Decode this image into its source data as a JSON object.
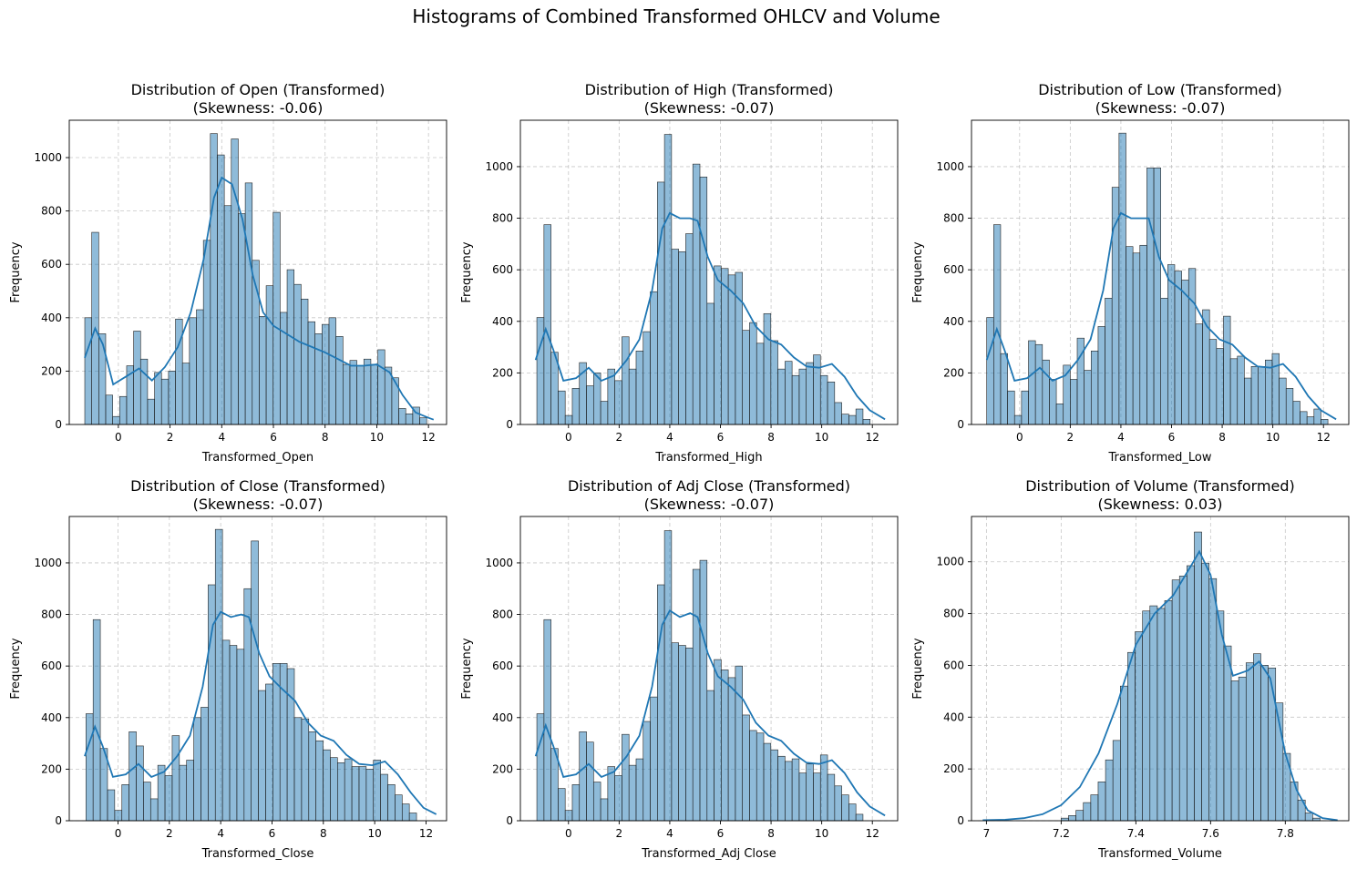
{
  "figure": {
    "suptitle": "Histograms of Combined Transformed OHLCV and Volume"
  },
  "colors": {
    "bar": "#1f77b4",
    "kde": "#1f77b4",
    "edge": "#222222",
    "grid": "#b0b0b0"
  },
  "chart_data": [
    {
      "type": "bar",
      "title_line1": "Distribution of Open (Transformed)",
      "title_line2": "(Skewness: -0.06)",
      "xlabel": "Transformed_Open",
      "ylabel": "Frequency",
      "bin_start": -1.3,
      "bin_width": 0.27,
      "values": [
        400,
        720,
        340,
        110,
        30,
        105,
        220,
        350,
        245,
        95,
        195,
        170,
        200,
        395,
        230,
        400,
        430,
        690,
        1090,
        1010,
        820,
        1070,
        790,
        905,
        615,
        405,
        520,
        795,
        420,
        580,
        525,
        470,
        385,
        340,
        375,
        400,
        330,
        225,
        240,
        220,
        245,
        225,
        280,
        215,
        175,
        60,
        40,
        65,
        25
      ],
      "kde_x": [
        -1.3,
        -0.9,
        -0.6,
        -0.2,
        0.3,
        0.8,
        1.3,
        1.8,
        2.3,
        2.8,
        3.3,
        3.7,
        4.0,
        4.4,
        4.8,
        5.2,
        5.6,
        6.0,
        6.5,
        7.0,
        7.5,
        8.0,
        8.5,
        9.0,
        9.5,
        10.0,
        10.5,
        11.0,
        11.5,
        12.0,
        12.2
      ],
      "kde_y": [
        250,
        360,
        300,
        150,
        180,
        210,
        165,
        215,
        290,
        420,
        620,
        850,
        925,
        900,
        770,
        560,
        420,
        370,
        340,
        310,
        290,
        270,
        245,
        220,
        220,
        225,
        195,
        110,
        45,
        25,
        18
      ],
      "xlim": [
        -1.9,
        12.7
      ],
      "ylim": [
        0,
        1140
      ],
      "xticks": [
        0,
        2,
        4,
        6,
        8,
        10,
        12
      ],
      "yticks": [
        0,
        200,
        400,
        600,
        800,
        1000
      ],
      "grid": true
    },
    {
      "type": "bar",
      "title_line1": "Distribution of High (Transformed)",
      "title_line2": "(Skewness: -0.07)",
      "xlabel": "Transformed_High",
      "ylabel": "Frequency",
      "bin_start": -1.25,
      "bin_width": 0.28,
      "values": [
        415,
        775,
        280,
        130,
        35,
        140,
        240,
        150,
        200,
        90,
        215,
        170,
        340,
        215,
        285,
        360,
        515,
        940,
        1125,
        680,
        670,
        740,
        1010,
        960,
        470,
        615,
        605,
        580,
        590,
        365,
        395,
        315,
        430,
        325,
        215,
        245,
        190,
        215,
        240,
        270,
        190,
        165,
        85,
        40,
        35,
        60,
        20
      ],
      "kde_x": [
        -1.3,
        -0.9,
        -0.6,
        -0.2,
        0.3,
        0.8,
        1.3,
        1.8,
        2.3,
        2.8,
        3.3,
        3.7,
        4.0,
        4.4,
        4.8,
        5.1,
        5.5,
        5.9,
        6.4,
        6.9,
        7.4,
        7.9,
        8.4,
        8.9,
        9.4,
        9.9,
        10.4,
        10.9,
        11.4,
        11.9,
        12.5
      ],
      "kde_y": [
        250,
        370,
        290,
        170,
        180,
        220,
        170,
        190,
        250,
        330,
        520,
        760,
        820,
        800,
        800,
        790,
        650,
        560,
        520,
        470,
        380,
        330,
        310,
        260,
        225,
        220,
        235,
        185,
        110,
        55,
        20
      ],
      "xlim": [
        -1.9,
        13.0
      ],
      "ylim": [
        0,
        1180
      ],
      "xticks": [
        0,
        2,
        4,
        6,
        8,
        10,
        12
      ],
      "yticks": [
        0,
        200,
        400,
        600,
        800,
        1000
      ],
      "grid": true
    },
    {
      "type": "bar",
      "title_line1": "Distribution of Low (Transformed)",
      "title_line2": "(Skewness: -0.07)",
      "xlabel": "Transformed_Low",
      "ylabel": "Frequency",
      "bin_start": -1.3,
      "bin_width": 0.275,
      "values": [
        415,
        775,
        275,
        130,
        35,
        130,
        325,
        310,
        250,
        175,
        80,
        230,
        175,
        335,
        210,
        285,
        380,
        490,
        920,
        1130,
        690,
        665,
        695,
        995,
        995,
        490,
        620,
        595,
        560,
        605,
        390,
        445,
        330,
        295,
        420,
        255,
        265,
        180,
        225,
        225,
        250,
        275,
        180,
        140,
        90,
        50,
        30,
        60,
        20
      ],
      "kde_x": [
        -1.3,
        -0.9,
        -0.6,
        -0.2,
        0.3,
        0.8,
        1.3,
        1.8,
        2.3,
        2.8,
        3.3,
        3.7,
        4.0,
        4.4,
        4.8,
        5.1,
        5.5,
        5.9,
        6.4,
        6.9,
        7.4,
        7.9,
        8.4,
        8.9,
        9.4,
        9.9,
        10.4,
        10.9,
        11.4,
        11.9,
        12.5
      ],
      "kde_y": [
        250,
        370,
        290,
        170,
        180,
        220,
        170,
        190,
        250,
        330,
        520,
        760,
        820,
        800,
        800,
        800,
        650,
        560,
        520,
        470,
        380,
        330,
        310,
        260,
        225,
        220,
        235,
        185,
        110,
        55,
        20
      ],
      "xlim": [
        -1.9,
        13.0
      ],
      "ylim": [
        0,
        1180
      ],
      "xticks": [
        0,
        2,
        4,
        6,
        8,
        10,
        12
      ],
      "yticks": [
        0,
        200,
        400,
        600,
        800,
        1000
      ],
      "grid": true
    },
    {
      "type": "bar",
      "title_line1": "Distribution of Close (Transformed)",
      "title_line2": "(Skewness: -0.07)",
      "xlabel": "Transformed_Close",
      "ylabel": "Frequency",
      "bin_start": -1.25,
      "bin_width": 0.28,
      "values": [
        415,
        780,
        280,
        120,
        40,
        140,
        345,
        290,
        150,
        85,
        215,
        175,
        330,
        215,
        235,
        400,
        440,
        915,
        1130,
        700,
        680,
        665,
        900,
        1085,
        505,
        530,
        610,
        610,
        590,
        400,
        395,
        345,
        310,
        275,
        245,
        225,
        240,
        210,
        210,
        200,
        235,
        180,
        140,
        100,
        65,
        30
      ],
      "kde_x": [
        -1.3,
        -0.9,
        -0.6,
        -0.2,
        0.3,
        0.8,
        1.3,
        1.8,
        2.3,
        2.8,
        3.3,
        3.7,
        4.0,
        4.4,
        4.8,
        5.1,
        5.5,
        5.9,
        6.4,
        6.9,
        7.4,
        7.9,
        8.4,
        8.9,
        9.4,
        9.9,
        10.4,
        10.9,
        11.4,
        11.9,
        12.4
      ],
      "kde_y": [
        250,
        365,
        290,
        170,
        180,
        220,
        170,
        190,
        250,
        330,
        520,
        760,
        810,
        790,
        800,
        790,
        650,
        560,
        510,
        465,
        380,
        330,
        310,
        255,
        220,
        215,
        230,
        180,
        110,
        50,
        25
      ],
      "xlim": [
        -1.9,
        12.8
      ],
      "ylim": [
        0,
        1180
      ],
      "xticks": [
        0,
        2,
        4,
        6,
        8,
        10,
        12
      ],
      "yticks": [
        0,
        200,
        400,
        600,
        800,
        1000
      ],
      "grid": true
    },
    {
      "type": "bar",
      "title_line1": "Distribution of Adj Close (Transformed)",
      "title_line2": "(Skewness: -0.07)",
      "xlabel": "Transformed_Adj Close",
      "ylabel": "Frequency",
      "bin_start": -1.25,
      "bin_width": 0.28,
      "values": [
        415,
        780,
        280,
        125,
        40,
        140,
        345,
        305,
        150,
        85,
        210,
        175,
        335,
        215,
        240,
        385,
        480,
        915,
        1125,
        690,
        680,
        670,
        975,
        1010,
        505,
        625,
        585,
        555,
        600,
        410,
        350,
        340,
        300,
        275,
        250,
        230,
        240,
        185,
        220,
        185,
        255,
        180,
        135,
        100,
        65,
        25
      ],
      "kde_x": [
        -1.3,
        -0.9,
        -0.6,
        -0.2,
        0.3,
        0.8,
        1.3,
        1.8,
        2.3,
        2.8,
        3.3,
        3.7,
        4.0,
        4.4,
        4.8,
        5.1,
        5.5,
        5.9,
        6.4,
        6.9,
        7.4,
        7.9,
        8.4,
        8.9,
        9.4,
        9.9,
        10.4,
        10.9,
        11.4,
        11.9,
        12.5
      ],
      "kde_y": [
        250,
        370,
        290,
        170,
        180,
        220,
        170,
        190,
        250,
        330,
        520,
        760,
        815,
        790,
        805,
        790,
        650,
        560,
        520,
        470,
        380,
        330,
        310,
        260,
        225,
        220,
        235,
        185,
        110,
        55,
        20
      ],
      "xlim": [
        -1.9,
        13.0
      ],
      "ylim": [
        0,
        1180
      ],
      "xticks": [
        0,
        2,
        4,
        6,
        8,
        10,
        12
      ],
      "yticks": [
        0,
        200,
        400,
        600,
        800,
        1000
      ],
      "grid": true
    },
    {
      "type": "bar",
      "title_line1": "Distribution of Volume (Transformed)",
      "title_line2": "(Skewness: 0.03)",
      "xlabel": "Transformed_Volume",
      "ylabel": "Frequency",
      "bin_start": 7.2,
      "bin_width": 0.0198,
      "values": [
        10,
        20,
        40,
        70,
        100,
        150,
        235,
        310,
        520,
        650,
        730,
        810,
        830,
        820,
        850,
        930,
        945,
        985,
        1115,
        995,
        935,
        810,
        675,
        540,
        555,
        610,
        645,
        600,
        590,
        455,
        260,
        150,
        80,
        30,
        10
      ],
      "kde_x": [
        6.99,
        7.05,
        7.1,
        7.15,
        7.2,
        7.25,
        7.3,
        7.35,
        7.4,
        7.45,
        7.5,
        7.55,
        7.57,
        7.6,
        7.63,
        7.66,
        7.7,
        7.73,
        7.76,
        7.8,
        7.83,
        7.86,
        7.9,
        7.94
      ],
      "kde_y": [
        2,
        4,
        10,
        25,
        60,
        130,
        260,
        450,
        680,
        800,
        870,
        990,
        1040,
        950,
        720,
        560,
        580,
        615,
        550,
        260,
        120,
        40,
        10,
        2
      ],
      "xlim": [
        6.96,
        7.97
      ],
      "ylim": [
        0,
        1175
      ],
      "xticks": [
        7.0,
        7.2,
        7.4,
        7.6,
        7.8
      ],
      "yticks": [
        0,
        200,
        400,
        600,
        800,
        1000
      ],
      "grid": true
    }
  ]
}
